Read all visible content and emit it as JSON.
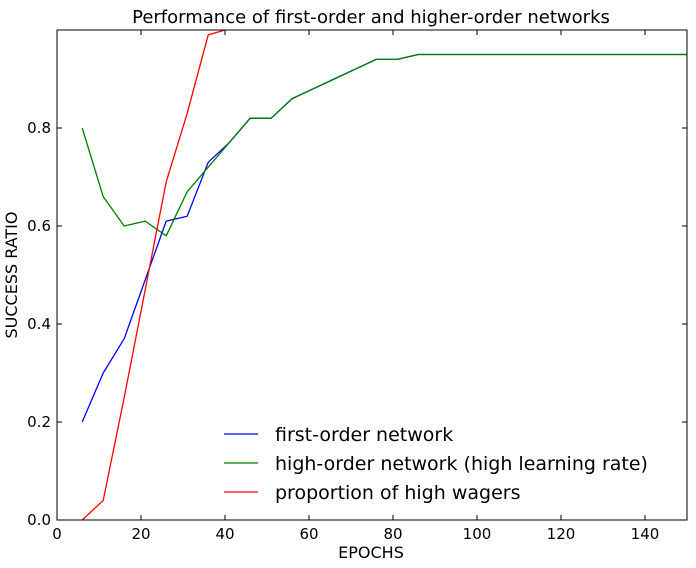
{
  "chart_data": {
    "type": "line",
    "title": "Performance of first-order and higher-order networks",
    "xlabel": "EPOCHS",
    "ylabel": "SUCCESS RATIO",
    "xlim": [
      0,
      150
    ],
    "ylim": [
      0,
      1.0
    ],
    "xticks": [
      0,
      20,
      40,
      60,
      80,
      100,
      120,
      140
    ],
    "yticks": [
      0.0,
      0.2,
      0.4,
      0.6,
      0.8
    ],
    "ytick_labels": [
      "0.0",
      "0.2",
      "0.4",
      "0.6",
      "0.8"
    ],
    "grid": false,
    "legend_position": "lower-right",
    "series": [
      {
        "name": "first-order network",
        "color": "#0000ff",
        "x": [
          6,
          11,
          16,
          21,
          26,
          31,
          36,
          41,
          46,
          51,
          56,
          61,
          66,
          71,
          76,
          81,
          86,
          150
        ],
        "y": [
          0.2,
          0.3,
          0.37,
          0.49,
          0.61,
          0.62,
          0.73,
          0.77,
          0.82,
          0.82,
          0.86,
          0.88,
          0.9,
          0.92,
          0.94,
          0.94,
          0.95,
          0.95
        ]
      },
      {
        "name": "high-order network (high learning rate)",
        "color": "#007f00",
        "x": [
          6,
          11,
          16,
          21,
          26,
          31,
          36,
          41,
          46,
          51,
          56,
          61,
          66,
          71,
          76,
          81,
          86,
          150
        ],
        "y": [
          0.8,
          0.66,
          0.6,
          0.61,
          0.58,
          0.67,
          0.72,
          0.77,
          0.82,
          0.82,
          0.86,
          0.88,
          0.9,
          0.92,
          0.94,
          0.94,
          0.95,
          0.95
        ]
      },
      {
        "name": "proportion of high wagers",
        "color": "#ff0000",
        "x": [
          6,
          11,
          16,
          21,
          26,
          31,
          36,
          40
        ],
        "y": [
          0.0,
          0.04,
          0.25,
          0.47,
          0.69,
          0.83,
          0.99,
          1.0
        ]
      }
    ]
  }
}
